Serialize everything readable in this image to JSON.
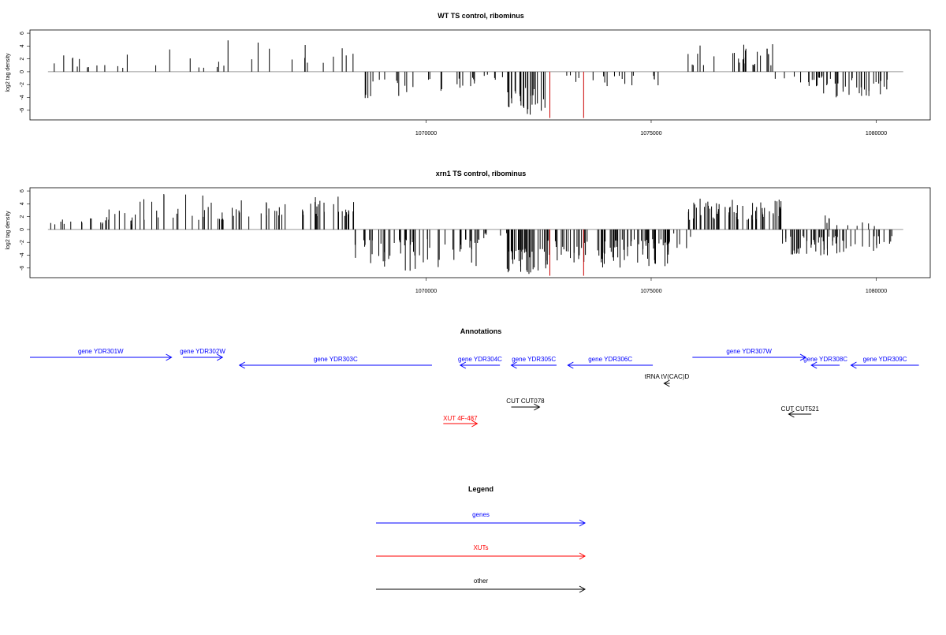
{
  "chart_data": [
    {
      "type": "bar",
      "title": "WT TS control, ribominus",
      "ylabel": "log2 tag density",
      "xlabel": "",
      "xlim": [
        1061200,
        1081200
      ],
      "ylim": [
        -7.5,
        6.5
      ],
      "yticks": [
        6,
        4,
        2,
        0,
        -2,
        -4,
        -6
      ],
      "xticks": [
        1070000,
        1075000,
        1080000
      ],
      "xtick_labels": [
        "1070000",
        "1075000",
        "1080000"
      ],
      "series": [
        {
          "values": [
            [
              1061600,
              1063600,
              0.6,
              3.2,
              13,
              3
            ],
            [
              1063600,
              1066600,
              0.6,
              5.5,
              12,
              4
            ],
            [
              1066600,
              1068400,
              1.0,
              4.3,
              9,
              5
            ],
            [
              1068500,
              1069500,
              -1.2,
              -5.0,
              10,
              6
            ],
            [
              1069500,
              1071200,
              -0.8,
              -3.2,
              16,
              7
            ],
            [
              1071200,
              1071800,
              -0.4,
              -1.5,
              5,
              8
            ],
            [
              1071800,
              1072700,
              -2.5,
              -6.8,
              30,
              9
            ],
            [
              1072900,
              1073400,
              -0.4,
              -1.8,
              4,
              10
            ],
            [
              1073500,
              1075200,
              -0.6,
              -2.6,
              14,
              11
            ],
            [
              1075800,
              1077700,
              1.0,
              4.3,
              28,
              12
            ],
            [
              1077700,
              1078800,
              -0.7,
              -2.5,
              14,
              13
            ],
            [
              1078800,
              1080300,
              -1.0,
              -4.0,
              30,
              14
            ]
          ]
        },
        {
          "name": "highlight",
          "values": [
            [
              1072750,
              -7.2
            ],
            [
              1073500,
              -7.2
            ]
          ]
        }
      ]
    },
    {
      "type": "bar",
      "title": "xrn1 TS control, ribominus",
      "ylabel": "log2 tag density",
      "xlabel": "",
      "xlim": [
        1061200,
        1081200
      ],
      "ylim": [
        -7.5,
        6.5
      ],
      "yticks": [
        6,
        4,
        2,
        0,
        -2,
        -4,
        -6
      ],
      "xticks": [
        1070000,
        1075000,
        1080000
      ],
      "xtick_labels": [
        "1070000",
        "1075000",
        "1080000"
      ],
      "series": [
        {
          "values": [
            [
              1061600,
              1063600,
              0.8,
              3.2,
              25,
              21
            ],
            [
              1063600,
              1065600,
              1.5,
              5.8,
              25,
              22
            ],
            [
              1065600,
              1068400,
              2.0,
              5.5,
              45,
              23
            ],
            [
              1068400,
              1071200,
              -1.5,
              -6.6,
              60,
              24
            ],
            [
              1071200,
              1071800,
              -0.4,
              -1.5,
              6,
              25
            ],
            [
              1071800,
              1072700,
              -3.0,
              -7.0,
              40,
              26
            ],
            [
              1072700,
              1075400,
              -1.5,
              -6.0,
              90,
              27
            ],
            [
              1075400,
              1076000,
              -0.5,
              -3.8,
              6,
              28
            ],
            [
              1075800,
              1077900,
              1.5,
              5.2,
              60,
              29
            ],
            [
              1077900,
              1080400,
              -1.0,
              -4.5,
              60,
              30
            ],
            [
              1078800,
              1080200,
              0.5,
              2.6,
              10,
              31
            ]
          ]
        },
        {
          "name": "highlight",
          "values": [
            [
              1072750,
              -7.2
            ],
            [
              1073500,
              -7.2
            ]
          ]
        }
      ]
    }
  ],
  "annotations": {
    "title": "Annotations",
    "items": [
      {
        "label": "gene YDR301W",
        "color": "#0000ff",
        "start": 1061100,
        "end": 1063600,
        "strand": "+",
        "row": 0
      },
      {
        "label": "gene YDR302W",
        "color": "#0000ff",
        "start": 1063800,
        "end": 1064500,
        "strand": "+",
        "row": 0
      },
      {
        "label": "gene YDR303C",
        "color": "#0000ff",
        "start": 1064800,
        "end": 1068200,
        "strand": "-",
        "row": 1
      },
      {
        "label": "gene YDR304C",
        "color": "#0000ff",
        "start": 1068700,
        "end": 1069400,
        "strand": "-",
        "row": 1
      },
      {
        "label": "gene YDR305C",
        "color": "#0000ff",
        "start": 1069600,
        "end": 1070400,
        "strand": "-",
        "row": 1
      },
      {
        "label": "gene YDR306C",
        "color": "#0000ff",
        "start": 1070600,
        "end": 1072100,
        "strand": "-",
        "row": 1
      },
      {
        "label": "gene YDR307W",
        "color": "#0000ff",
        "start": 1072800,
        "end": 1074800,
        "strand": "+",
        "row": 0
      },
      {
        "label": "gene YDR308C",
        "color": "#0000ff",
        "start": 1074900,
        "end": 1075400,
        "strand": "-",
        "row": 1
      },
      {
        "label": "gene YDR309C",
        "color": "#0000ff",
        "start": 1075600,
        "end": 1076800,
        "strand": "-",
        "row": 1
      },
      {
        "label": "tRNA tV(CAC)D",
        "color": "#000000",
        "start": 1072300,
        "end": 1072400,
        "strand": "-",
        "row": 2
      },
      {
        "label": "CUT CUT078",
        "color": "#000000",
        "start": 1069600,
        "end": 1070100,
        "strand": "+",
        "row": 3
      },
      {
        "label": "CUT CUT521",
        "color": "#000000",
        "start": 1074500,
        "end": 1074900,
        "strand": "-",
        "row": 4
      },
      {
        "label": "XUT 4F-487",
        "color": "#ff0000",
        "start": 1068400,
        "end": 1069000,
        "strand": "+",
        "row": 5
      }
    ]
  },
  "legend": {
    "title": "Legend",
    "items": [
      {
        "label": "genes",
        "color": "#0000ff"
      },
      {
        "label": "XUTs",
        "color": "#ff0000"
      },
      {
        "label": "other",
        "color": "#000000"
      }
    ]
  },
  "colors": {
    "bar": "#000000",
    "highlight": "#cc0000",
    "baseline": "#999999"
  }
}
